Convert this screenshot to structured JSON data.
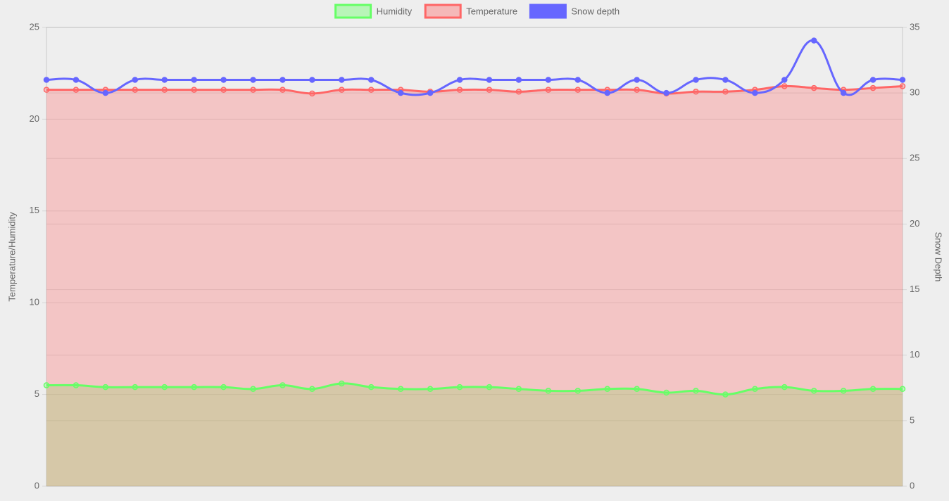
{
  "chart_data": {
    "type": "line",
    "categories": [
      null,
      null,
      null,
      null,
      null,
      null,
      null,
      null,
      null,
      null,
      null,
      null,
      null,
      null,
      null,
      null,
      null,
      null,
      null,
      null,
      null,
      null,
      null,
      null,
      null,
      null,
      null,
      null,
      null,
      null
    ],
    "series": [
      {
        "name": "Humidity",
        "color": "#66ff66",
        "fill": true,
        "axis": "y",
        "values": [
          5.5,
          5.5,
          5.4,
          5.4,
          5.4,
          5.4,
          5.4,
          5.3,
          5.5,
          5.3,
          5.6,
          5.4,
          5.3,
          5.3,
          5.4,
          5.4,
          5.3,
          5.2,
          5.2,
          5.3,
          5.3,
          5.1,
          5.2,
          5.0,
          5.3,
          5.4,
          5.2,
          5.2,
          5.3,
          5.3
        ]
      },
      {
        "name": "Temperature",
        "color": "#ff6666",
        "fill": true,
        "axis": "y",
        "values": [
          21.6,
          21.6,
          21.6,
          21.6,
          21.6,
          21.6,
          21.6,
          21.6,
          21.6,
          21.4,
          21.6,
          21.6,
          21.6,
          21.5,
          21.6,
          21.6,
          21.5,
          21.6,
          21.6,
          21.6,
          21.6,
          21.4,
          21.5,
          21.5,
          21.6,
          21.8,
          21.7,
          21.6,
          21.7,
          21.8
        ]
      },
      {
        "name": "Snow depth",
        "color": "#6666ff",
        "fill": false,
        "axis": "y2",
        "values": [
          31,
          31,
          30,
          31,
          31,
          31,
          31,
          31,
          31,
          31,
          31,
          31,
          30,
          30,
          31,
          31,
          31,
          31,
          31,
          30,
          31,
          30,
          31,
          31,
          30,
          31,
          34,
          30,
          31,
          31
        ]
      }
    ],
    "ylabel": "Temperature/Humidity",
    "y2label": "Snow Depth",
    "ylim": [
      0,
      25
    ],
    "yticks": [
      0,
      5,
      10,
      15,
      20,
      25
    ],
    "y2lim": [
      0,
      35
    ],
    "y2ticks": [
      0,
      5,
      10,
      15,
      20,
      25,
      30,
      35
    ],
    "grid": true,
    "legend": "top"
  }
}
